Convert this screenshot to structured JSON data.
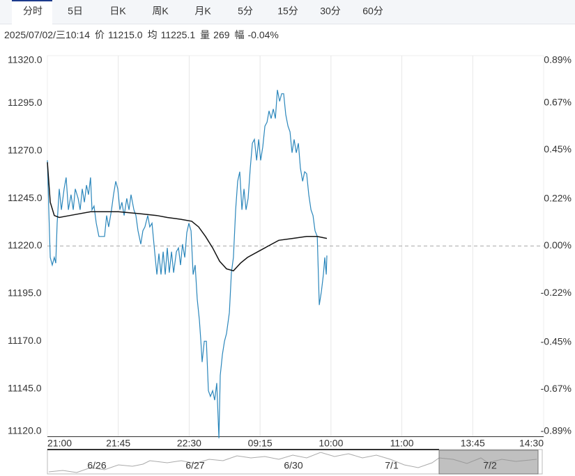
{
  "tabs": {
    "items": [
      "分时",
      "5日",
      "日K",
      "周K",
      "月K",
      "5分",
      "15分",
      "30分",
      "60分"
    ],
    "selected": 0
  },
  "info": {
    "datetime": "2025/07/02/三10:14",
    "items": [
      {
        "label": "价",
        "value": "11215.0"
      },
      {
        "label": "均",
        "value": "11225.1"
      },
      {
        "label": "量",
        "value": "269"
      },
      {
        "label": "幅",
        "value": "-0.04%"
      }
    ]
  },
  "chart_data": {
    "type": "line",
    "xlim": [
      0,
      315
    ],
    "xticks": [
      {
        "value": 0,
        "label": "21:00"
      },
      {
        "value": 45,
        "label": "21:45"
      },
      {
        "value": 90,
        "label": "22:30"
      },
      {
        "value": 135,
        "label": "09:15"
      },
      {
        "value": 180,
        "label": "10:00"
      },
      {
        "value": 225,
        "label": "11:00"
      },
      {
        "value": 270,
        "label": "13:45"
      },
      {
        "value": 315,
        "label": "14:30"
      }
    ],
    "ylim": [
      11120,
      11320
    ],
    "yticks": [
      {
        "value": 11320,
        "label": "11320.0"
      },
      {
        "value": 11295,
        "label": "11295.0"
      },
      {
        "value": 11270,
        "label": "11270.0"
      },
      {
        "value": 11245,
        "label": "11245.0"
      },
      {
        "value": 11220,
        "label": "11220.0"
      },
      {
        "value": 11195,
        "label": "11195.0"
      },
      {
        "value": 11170,
        "label": "11170.0"
      },
      {
        "value": 11145,
        "label": "11145.0"
      },
      {
        "value": 11120,
        "label": "11120.0"
      }
    ],
    "y2lim": [
      -0.89,
      0.89
    ],
    "y2ticks": [
      {
        "value": 0.89,
        "label": "0.89%"
      },
      {
        "value": 0.67,
        "label": "0.67%"
      },
      {
        "value": 0.45,
        "label": "0.45%"
      },
      {
        "value": 0.22,
        "label": "0.22%"
      },
      {
        "value": 0,
        "label": "0.00%"
      },
      {
        "value": -0.22,
        "label": "-0.22%"
      },
      {
        "value": -0.45,
        "label": "-0.45%"
      },
      {
        "value": -0.67,
        "label": "-0.67%"
      },
      {
        "value": -0.89,
        "label": "-0.89%"
      }
    ],
    "reference": 11220,
    "up_color": "#e0201c",
    "down_color": "#16a316",
    "grid": true,
    "series": [
      {
        "color": "#2a86bb",
        "x": [
          0,
          0.9,
          1.8,
          3.1,
          4.4,
          5.3,
          6.2,
          7.5,
          8.9,
          10.6,
          11.9,
          13.3,
          15.0,
          16.4,
          17.7,
          19.5,
          20.8,
          22.1,
          23.5,
          24.8,
          26.1,
          27.4,
          28.3,
          29.6,
          31.0,
          32.7,
          36.3,
          37.6,
          38.9,
          40.7,
          42.0,
          43.4,
          44.7,
          46.0,
          47.3,
          48.7,
          50.4,
          51.8,
          53.1,
          54.9,
          56.2,
          57.5,
          59.3,
          60.6,
          61.9,
          63.7,
          65.0,
          66.4,
          68.1,
          69.5,
          70.8,
          72.1,
          73.5,
          74.8,
          76.1,
          77.4,
          78.8,
          80.1,
          81.9,
          83.2,
          84.5,
          85.8,
          87.2,
          88.5,
          89.8,
          91.2,
          92.5,
          93.8,
          95.1,
          96.5,
          97.4,
          98.2,
          99.6,
          100.9,
          102.2,
          103.5,
          104.9,
          106.2,
          107.5,
          108.9,
          109.7,
          111.1,
          112.4,
          113.7,
          115.5,
          116.8,
          118.1,
          119.5,
          120.8,
          122.1,
          123.5,
          124.8,
          126.1,
          127.4,
          128.8,
          130.1,
          131.4,
          132.8,
          134.1,
          135.4,
          136.7,
          138.1,
          139.4,
          140.7,
          142.0,
          143.4,
          144.7,
          146.0,
          147.4,
          148.7,
          150.0,
          151.3,
          152.7,
          154.0,
          155.3,
          156.6,
          158.0,
          159.3,
          160.6,
          162.0,
          163.3,
          164.6,
          165.9,
          167.3,
          168.6,
          169.9,
          171.3,
          172.6,
          173.9,
          175.2,
          176.1,
          177.0,
          177.4
        ],
        "values": [
          11265,
          11239,
          11214,
          11210,
          11214,
          11211,
          11232,
          11250,
          11239,
          11250,
          11256,
          11239,
          11247,
          11239,
          11250,
          11245,
          11239,
          11250,
          11243,
          11252,
          11247,
          11256,
          11239,
          11241,
          11232,
          11225,
          11225,
          11236,
          11230,
          11239,
          11247,
          11254,
          11250,
          11239,
          11243,
          11236,
          11245,
          11239,
          11247,
          11239,
          11236,
          11228,
          11221,
          11228,
          11230,
          11236,
          11230,
          11232,
          11217,
          11205,
          11216,
          11205,
          11217,
          11205,
          11219,
          11206,
          11217,
          11206,
          11217,
          11219,
          11210,
          11221,
          11214,
          11227,
          11232,
          11228,
          11205,
          11210,
          11192,
          11181,
          11170,
          11159,
          11170,
          11170,
          11144,
          11141,
          11144,
          11139,
          11148,
          11119,
          11152,
          11163,
          11170,
          11174,
          11185,
          11206,
          11214,
          11239,
          11254,
          11259,
          11239,
          11250,
          11239,
          11245,
          11261,
          11274,
          11276,
          11265,
          11276,
          11265,
          11272,
          11283,
          11285,
          11291,
          11287,
          11292,
          11287,
          11302,
          11296,
          11300,
          11300,
          11289,
          11283,
          11280,
          11269,
          11276,
          11269,
          11274,
          11261,
          11254,
          11259,
          11258,
          11247,
          11239,
          11236,
          11228,
          11225,
          11189,
          11196,
          11205,
          11214,
          11205,
          11215
        ]
      },
      {
        "color": "#111111",
        "x": [
          0,
          1.8,
          4.4,
          7.5,
          14.2,
          27.4,
          36.3,
          45.1,
          58.4,
          69.5,
          76.1,
          85.0,
          91.6,
          96.0,
          100.4,
          104.9,
          109.3,
          113.7,
          118.1,
          122.6,
          127.0,
          133.6,
          140.2,
          146.9,
          155.7,
          164.6,
          171.3,
          177.4
        ],
        "values": [
          11264,
          11243,
          11236,
          11235,
          11236,
          11238,
          11238,
          11238,
          11237,
          11236,
          11235,
          11234,
          11233,
          11230,
          11225,
          11219,
          11212,
          11208,
          11207,
          11211,
          11214,
          11217,
          11220,
          11223,
          11224,
          11225,
          11225,
          11224
        ]
      }
    ]
  },
  "navigator": {
    "labels": [
      "6/26",
      "6/27",
      "6/30",
      "7/1",
      "7/2"
    ]
  }
}
